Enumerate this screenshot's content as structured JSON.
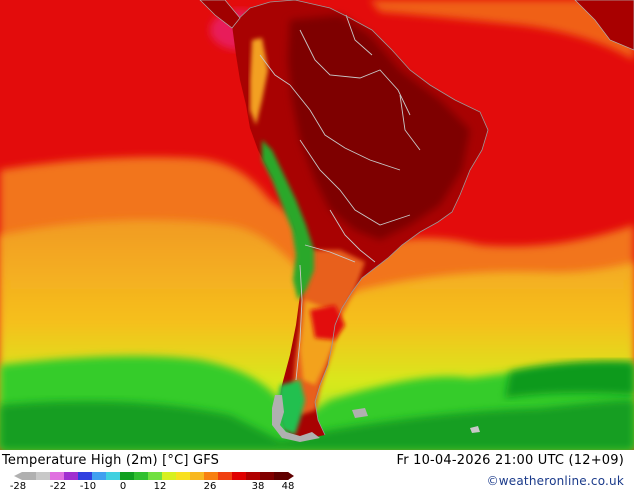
{
  "map": {
    "title": "Temperature High (2m) [°C] GFS",
    "valid_time": "Fr 10-04-2026 21:00 UTC (12+09)",
    "credit": "©weatheronline.co.uk",
    "region": "South America",
    "legend": {
      "ticks": [
        "-28",
        "-22",
        "-10",
        "0",
        "12",
        "26",
        "38",
        "48"
      ],
      "colors": [
        "#b0b0b0",
        "#c8c8c8",
        "#e070e0",
        "#a030d0",
        "#3040e0",
        "#40a0f0",
        "#40d0e0",
        "#10a020",
        "#30c030",
        "#70e040",
        "#d8f020",
        "#f8e020",
        "#f8b820",
        "#f88010",
        "#f04010",
        "#e00000",
        "#b00000",
        "#800000",
        "#600000"
      ]
    },
    "colors": {
      "ocean_hot": "#e00a0a",
      "land_hot": "#a00000",
      "land_very_hot": "#7a0000",
      "orange": "#f07a18",
      "yellow_orange": "#f5a020",
      "green": "#2ec82a",
      "dark_green": "#0e9a1e",
      "borders": "#b8b8b8"
    }
  }
}
